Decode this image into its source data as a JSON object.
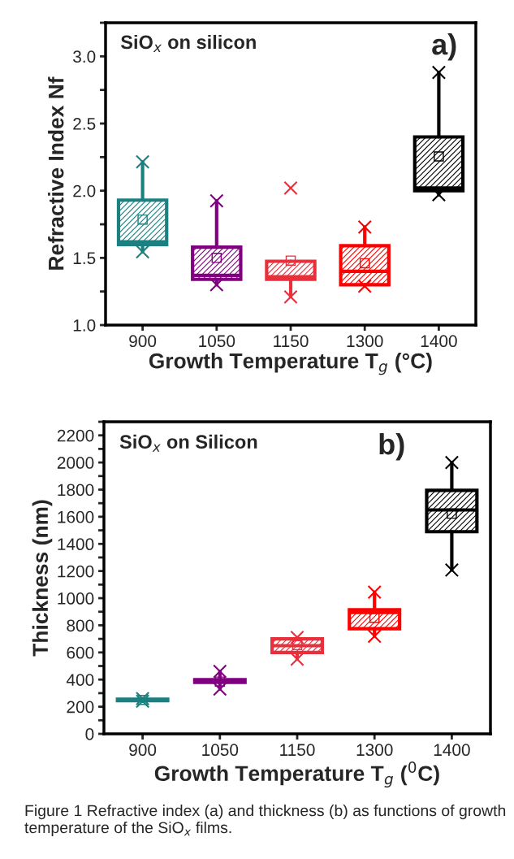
{
  "chart_data": [
    {
      "type": "box",
      "ylabel": "Refractive Index Nf",
      "xlabel": "Growth Temperature T$_{g}$ (°C)",
      "categories": [
        "900",
        "1050",
        "1150",
        "1300",
        "1400"
      ],
      "colors": [
        "#1a8080",
        "#800080",
        "#e8303c",
        "#ff0000",
        "#000000"
      ],
      "boxes": [
        {
          "low": 1.545,
          "q1": 1.6,
          "median": 1.62,
          "q3": 1.93,
          "high": 2.215,
          "mean": 1.785,
          "outliers": [
            1.545,
            2.215
          ]
        },
        {
          "low": 1.3,
          "q1": 1.34,
          "median": 1.37,
          "q3": 1.58,
          "high": 1.925,
          "mean": 1.5,
          "outliers": [
            1.3,
            1.925
          ]
        },
        {
          "low": 1.21,
          "q1": 1.34,
          "median": 1.36,
          "q3": 1.475,
          "high": 1.475,
          "mean": 1.48,
          "outliers": [
            1.21,
            2.02
          ]
        },
        {
          "low": 1.29,
          "q1": 1.3,
          "median": 1.4,
          "q3": 1.59,
          "high": 1.73,
          "mean": 1.46,
          "outliers": [
            1.29,
            1.73
          ]
        },
        {
          "low": 1.97,
          "q1": 2.0,
          "median": 2.02,
          "q3": 2.4,
          "high": 2.88,
          "mean": 2.255,
          "outliers": [
            1.97,
            2.88
          ]
        }
      ],
      "ylim": [
        1,
        3.25
      ],
      "yticks": [
        {
          "value": 1,
          "label": "1.0"
        },
        {
          "value": 1.25,
          "label": null
        },
        {
          "value": 1.5,
          "label": "1.5"
        },
        {
          "value": 1.75,
          "label": null
        },
        {
          "value": 2,
          "label": "2.0"
        },
        {
          "value": 2.25,
          "label": null
        },
        {
          "value": 2.5,
          "label": "2.5"
        },
        {
          "value": 2.75,
          "label": null
        },
        {
          "value": 3,
          "label": "3.0"
        },
        {
          "value": 3.25,
          "label": null
        }
      ],
      "annotations": [
        "SiO$_{x}$ on silicon",
        "a)"
      ]
    },
    {
      "type": "box",
      "ylabel": "Thickness (nm)",
      "xlabel": "Growth Temperature T$_{g}$ ($^{0}$C)",
      "categories": [
        "900",
        "1050",
        "1150",
        "1300",
        "1400"
      ],
      "colors": [
        "#1a8080",
        "#800080",
        "#e8303c",
        "#ff0000",
        "#000000"
      ],
      "boxes": [
        {
          "low": 240,
          "q1": 245,
          "median": 250,
          "q3": 255,
          "high": 260,
          "mean": 250,
          "outliers": [
            240,
            260
          ]
        },
        {
          "low": 330,
          "q1": 380,
          "median": 395,
          "q3": 400,
          "high": 460,
          "mean": 385,
          "outliers": [
            330,
            460
          ]
        },
        {
          "low": 550,
          "q1": 600,
          "median": 650,
          "q3": 700,
          "high": 710,
          "mean": 654,
          "outliers": [
            550,
            710
          ]
        },
        {
          "low": 720,
          "q1": 775,
          "median": 895,
          "q3": 915,
          "high": 1045,
          "mean": 855,
          "outliers": [
            720,
            1045
          ]
        },
        {
          "low": 1207,
          "q1": 1490,
          "median": 1650,
          "q3": 1795,
          "high": 2000,
          "mean": 1623,
          "outliers": [
            1207,
            2000
          ]
        }
      ],
      "ylim": [
        0,
        2300
      ],
      "yticks": [
        0,
        {
          "value": 100,
          "label": null
        },
        200,
        {
          "value": 300,
          "label": null
        },
        400,
        {
          "value": 500,
          "label": null
        },
        600,
        {
          "value": 700,
          "label": null
        },
        800,
        {
          "value": 900,
          "label": null
        },
        1000,
        {
          "value": 1100,
          "label": null
        },
        1200,
        {
          "value": 1300,
          "label": null
        },
        1400,
        {
          "value": 1500,
          "label": null
        },
        1600,
        {
          "value": 1700,
          "label": null
        },
        1800,
        {
          "value": 1900,
          "label": null
        },
        2000,
        {
          "value": 2100,
          "label": null
        },
        2200,
        {
          "value": 2300,
          "label": null
        }
      ],
      "annotations": [
        "SiO$_{x}$ on Silicon",
        "b)",
        "Figure 1 Refractive index (a) and thickness (b) as functions of growth temperature of the SiO$_{x}$ films."
      ]
    }
  ]
}
